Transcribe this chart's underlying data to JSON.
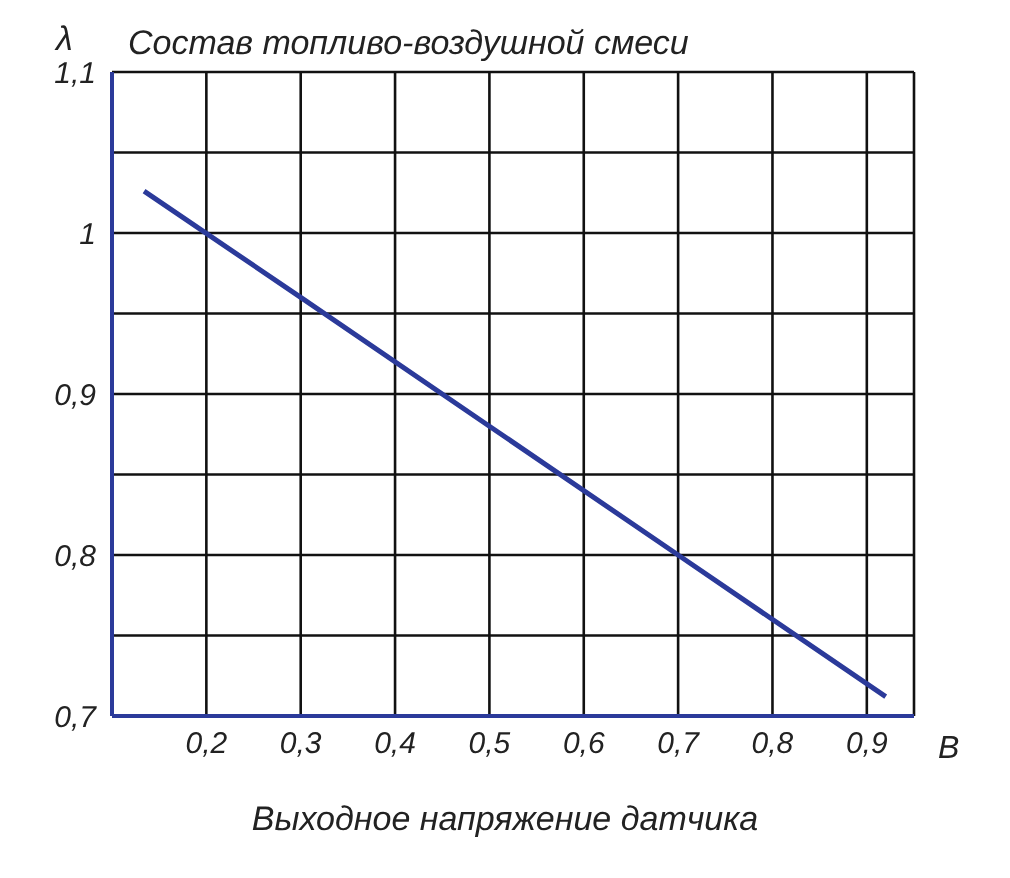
{
  "chart_data": {
    "type": "line",
    "title": "Состав топливо-воздушной смеси",
    "xlabel": "Выходное напряжение датчика",
    "ylabel": "λ",
    "annotations": [
      "В"
    ],
    "x": [
      0.134,
      0.3,
      0.5,
      0.7,
      0.92
    ],
    "series": [
      {
        "color": "#2b3a9a",
        "values": [
          1.026,
          0.96,
          0.88,
          0.8,
          0.712
        ]
      }
    ],
    "xlim": [
      0.1,
      0.95
    ],
    "xticks": [
      {
        "value": 0.1,
        "label": null
      },
      {
        "value": 0.2,
        "label": "0,2"
      },
      {
        "value": 0.3,
        "label": "0,3"
      },
      {
        "value": 0.4,
        "label": "0,4"
      },
      {
        "value": 0.5,
        "label": "0,5"
      },
      {
        "value": 0.6,
        "label": "0,6"
      },
      {
        "value": 0.7,
        "label": "0,7"
      },
      {
        "value": 0.8,
        "label": "0,8"
      },
      {
        "value": 0.9,
        "label": "0,9"
      },
      {
        "value": 0.95,
        "label": null
      }
    ],
    "ylim": [
      0.7,
      1.1
    ],
    "yticks": [
      {
        "value": 0.7,
        "label": "0,7"
      },
      {
        "value": 0.75,
        "label": null
      },
      {
        "value": 0.8,
        "label": "0,8"
      },
      {
        "value": 0.85,
        "label": null
      },
      {
        "value": 0.9,
        "label": "0,9"
      },
      {
        "value": 0.95,
        "label": null
      },
      1,
      {
        "value": 1.05,
        "label": null
      },
      {
        "value": 1.1,
        "label": "1,1"
      }
    ],
    "grid": true,
    "marker": "none",
    "line_style": "solid"
  }
}
